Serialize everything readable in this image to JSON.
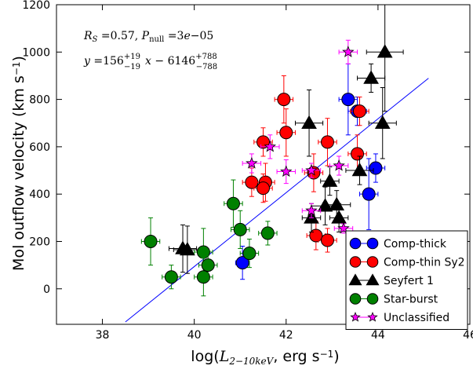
{
  "chart_data": {
    "type": "scatter",
    "xlabel": "log(L_2−10keV, erg s⁻¹)",
    "ylabel": "Mol outflow velocity (km s⁻¹)",
    "xlim": [
      37,
      46
    ],
    "ylim": [
      -150,
      1200
    ],
    "xticks": [
      38,
      40,
      42,
      44,
      46
    ],
    "yticks": [
      0,
      200,
      400,
      600,
      800,
      1000,
      1200
    ],
    "grid": false,
    "legend_position": "bottom-right",
    "annotations": [
      "R_S = 0.57, P_null = 3e−05",
      "y = 156 (+19/−19) x − 6146 (+788/−788)"
    ],
    "fit_line": {
      "slope": 156,
      "intercept": -6146,
      "x_range": [
        38.5,
        45.1
      ]
    },
    "series": [
      {
        "name": "Comp-thick",
        "marker": "circle",
        "color": "#0000ff",
        "points": [
          {
            "x": 41.05,
            "y": 110,
            "xerr": 0.15,
            "yerr": 70
          },
          {
            "x": 43.35,
            "y": 800,
            "xerr": 0.2,
            "yerr": 150
          },
          {
            "x": 43.55,
            "y": 750,
            "xerr": 0.2,
            "yerr": 60
          },
          {
            "x": 43.95,
            "y": 510,
            "xerr": 0.2,
            "yerr": 60
          },
          {
            "x": 43.8,
            "y": 400,
            "xerr": 0.2,
            "yerr": 150
          }
        ]
      },
      {
        "name": "Comp-thin Sy2",
        "marker": "circle",
        "color": "#ff0000",
        "points": [
          {
            "x": 41.25,
            "y": 450,
            "xerr": 0.2,
            "yerr": 60
          },
          {
            "x": 41.5,
            "y": 620,
            "xerr": 0.2,
            "yerr": 60
          },
          {
            "x": 41.55,
            "y": 450,
            "xerr": 0.2,
            "yerr": 80
          },
          {
            "x": 41.5,
            "y": 425,
            "xerr": 0.2,
            "yerr": 60
          },
          {
            "x": 41.95,
            "y": 800,
            "xerr": 0.2,
            "yerr": 100
          },
          {
            "x": 42.0,
            "y": 660,
            "xerr": 0.2,
            "yerr": 100
          },
          {
            "x": 42.6,
            "y": 490,
            "xerr": 0.2,
            "yerr": 80
          },
          {
            "x": 42.65,
            "y": 225,
            "xerr": 0.2,
            "yerr": 60
          },
          {
            "x": 42.9,
            "y": 620,
            "xerr": 0.2,
            "yerr": 100
          },
          {
            "x": 42.9,
            "y": 205,
            "xerr": 0.2,
            "yerr": 50
          },
          {
            "x": 43.55,
            "y": 570,
            "xerr": 0.2,
            "yerr": 80
          },
          {
            "x": 43.6,
            "y": 750,
            "xerr": 0.2,
            "yerr": 60
          }
        ]
      },
      {
        "name": "Seyfert 1",
        "marker": "triangle",
        "color": "#000000",
        "points": [
          {
            "x": 39.75,
            "y": 170,
            "xerr": 0.3,
            "yerr": 100
          },
          {
            "x": 39.85,
            "y": 165,
            "xerr": 0.3,
            "yerr": 100
          },
          {
            "x": 42.5,
            "y": 700,
            "xerr": 0.3,
            "yerr": 140
          },
          {
            "x": 42.55,
            "y": 300,
            "xerr": 0.2,
            "yerr": 60
          },
          {
            "x": 42.85,
            "y": 350,
            "xerr": 0.3,
            "yerr": 80
          },
          {
            "x": 42.95,
            "y": 455,
            "xerr": 0.2,
            "yerr": 60
          },
          {
            "x": 43.1,
            "y": 355,
            "xerr": 0.3,
            "yerr": 60
          },
          {
            "x": 43.15,
            "y": 300,
            "xerr": 0.2,
            "yerr": 60
          },
          {
            "x": 43.6,
            "y": 500,
            "xerr": 0.3,
            "yerr": 60
          },
          {
            "x": 43.85,
            "y": 890,
            "xerr": 0.3,
            "yerr": 60
          },
          {
            "x": 44.1,
            "y": 700,
            "xerr": 0.3,
            "yerr": 150
          },
          {
            "x": 44.15,
            "y": 1000,
            "xerr": 0.4,
            "yerr": 250
          }
        ]
      },
      {
        "name": "Star-burst",
        "marker": "circle",
        "color": "#008000",
        "points": [
          {
            "x": 39.05,
            "y": 200,
            "xerr": 0.2,
            "yerr": 100
          },
          {
            "x": 39.5,
            "y": 50,
            "xerr": 0.2,
            "yerr": 50
          },
          {
            "x": 40.2,
            "y": 155,
            "xerr": 0.2,
            "yerr": 100
          },
          {
            "x": 40.2,
            "y": 50,
            "xerr": 0.2,
            "yerr": 80
          },
          {
            "x": 40.3,
            "y": 100,
            "xerr": 0.2,
            "yerr": 60
          },
          {
            "x": 40.85,
            "y": 360,
            "xerr": 0.2,
            "yerr": 100
          },
          {
            "x": 41.0,
            "y": 250,
            "xerr": 0.2,
            "yerr": 80
          },
          {
            "x": 41.2,
            "y": 150,
            "xerr": 0.2,
            "yerr": 60
          },
          {
            "x": 41.6,
            "y": 235,
            "xerr": 0.2,
            "yerr": 50
          }
        ]
      },
      {
        "name": "Unclassified",
        "marker": "star",
        "color": "#ff00ff",
        "points": [
          {
            "x": 41.25,
            "y": 530,
            "xerr": 0.2,
            "yerr": 40
          },
          {
            "x": 41.65,
            "y": 600,
            "xerr": 0.2,
            "yerr": 50
          },
          {
            "x": 42.0,
            "y": 495,
            "xerr": 0.2,
            "yerr": 50
          },
          {
            "x": 42.55,
            "y": 500,
            "xerr": 0.2,
            "yerr": 30
          },
          {
            "x": 42.55,
            "y": 330,
            "xerr": 0.2,
            "yerr": 30
          },
          {
            "x": 43.15,
            "y": 520,
            "xerr": 0.2,
            "yerr": 40
          },
          {
            "x": 43.25,
            "y": 255,
            "xerr": 0.2,
            "yerr": 20
          },
          {
            "x": 43.35,
            "y": 1000,
            "xerr": 0.2,
            "yerr": 50
          }
        ]
      }
    ]
  }
}
